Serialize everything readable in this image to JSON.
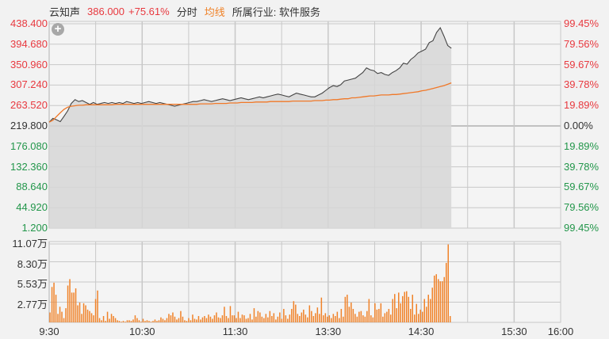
{
  "header": {
    "name": "云知声",
    "price": "386.000",
    "change_pct": "+75.61%",
    "mode_label": "分时",
    "avg_label": "均线",
    "industry": "所属行业: 软件服务"
  },
  "colors": {
    "up": "#e8393f",
    "down": "#22964a",
    "neutral": "#333333",
    "price_line": "#444444",
    "avg_line": "#f07828",
    "volume": "#f08228",
    "area_fill": "#d6d6d6",
    "grid": "#c8c8c8",
    "background": "#f2f2f2"
  },
  "controls": {
    "zoom_icon": "plus-circle-icon"
  },
  "chart_data": {
    "type": "line",
    "title": "云知声 分时",
    "price_axis": {
      "left_ticks": [
        "438.400",
        "394.680",
        "350.960",
        "307.240",
        "263.520",
        "219.800",
        "176.080",
        "132.360",
        "88.640",
        "44.920",
        "1.200"
      ],
      "right_ticks": [
        "99.45%",
        "79.56%",
        "59.67%",
        "39.78%",
        "19.89%",
        "0.00%",
        "19.89%",
        "39.78%",
        "59.67%",
        "79.56%",
        "99.45%"
      ],
      "ylim": [
        1.2,
        438.4
      ],
      "prev_close": 219.8
    },
    "volume_axis": {
      "ticks": [
        "11.07万",
        "8.30万",
        "5.53万",
        "2.77万"
      ],
      "ylim": [
        0,
        11.07
      ],
      "unit": "万"
    },
    "x_ticks": [
      {
        "label": "9:30",
        "pos": 0
      },
      {
        "label": "10:30",
        "pos": 2
      },
      {
        "label": "11:30",
        "pos": 4
      },
      {
        "label": "13:30",
        "pos": 6
      },
      {
        "label": "14:30",
        "pos": 8
      },
      {
        "label": "15:30",
        "pos": 10
      },
      {
        "label": "16:00",
        "pos": 11
      }
    ],
    "x_grid_cells": 11,
    "data_extent_cells": 8.65,
    "series": [
      {
        "name": "价格",
        "values": [
          228,
          236,
          233,
          229,
          240,
          252,
          268,
          276,
          272,
          274,
          270,
          266,
          270,
          266,
          268,
          270,
          268,
          270,
          268,
          270,
          268,
          272,
          270,
          268,
          270,
          268,
          270,
          272,
          270,
          268,
          270,
          268,
          266,
          264,
          262,
          264,
          266,
          268,
          270,
          272,
          272,
          274,
          276,
          274,
          272,
          274,
          276,
          278,
          276,
          274,
          276,
          278,
          280,
          278,
          276,
          278,
          280,
          282,
          280,
          282,
          284,
          286,
          288,
          286,
          284,
          282,
          286,
          290,
          288,
          286,
          284,
          282,
          282,
          286,
          290,
          296,
          302,
          306,
          304,
          308,
          316,
          318,
          320,
          322,
          328,
          334,
          344,
          340,
          338,
          332,
          334,
          330,
          328,
          334,
          338,
          344,
          354,
          352,
          362,
          368,
          376,
          380,
          384,
          398,
          402,
          420,
          430,
          412,
          392,
          386
        ]
      },
      {
        "name": "均价",
        "values": [
          228,
          232,
          240,
          248,
          255,
          260,
          262,
          263,
          264,
          264,
          265,
          265,
          265,
          265,
          265,
          265,
          265,
          265,
          266,
          266,
          266,
          266,
          266,
          266,
          266,
          266,
          266,
          266,
          266,
          266,
          266,
          266,
          266,
          266,
          266,
          266,
          266,
          266,
          266,
          266,
          266,
          267,
          267,
          267,
          267,
          268,
          268,
          268,
          268,
          269,
          269,
          269,
          270,
          270,
          270,
          270,
          271,
          271,
          271,
          271,
          272,
          272,
          272,
          272,
          272,
          272,
          273,
          273,
          273,
          273,
          273,
          273,
          274,
          274,
          274,
          275,
          275,
          276,
          276,
          277,
          278,
          278,
          280,
          280,
          281,
          282,
          283,
          284,
          284,
          285,
          286,
          286,
          286,
          287,
          287,
          288,
          289,
          290,
          291,
          292,
          293,
          295,
          296,
          298,
          300,
          302,
          304,
          306,
          309,
          312
        ]
      },
      {
        "name": "成交量(万)",
        "values": [
          1.4,
          5.0,
          5.6,
          3.9,
          1.2,
          2.2,
          1.5,
          0.6,
          2.0,
          5.2,
          6.1,
          4.2,
          4.2,
          4.8,
          2.4,
          2.8,
          1.2,
          2.7,
          2.4,
          1.8,
          1.6,
          1.3,
          1.0,
          3.3,
          4.5,
          0.6,
          0.3,
          0.9,
          0.2,
          1.5,
          0.5,
          1.2,
          0.9,
          0.6,
          0.3,
          0.2,
          0.1,
          0.2,
          0.1,
          0.3,
          0.3,
          0.2,
          0.4,
          1.0,
          0.6,
          0.3,
          0.1,
          0.5,
          0.2,
          0.3,
          0.2,
          0.1,
          0.2,
          0.4,
          0.2,
          0.3,
          0.7,
          0.5,
          0.3,
          0.6,
          1.2,
          1.0,
          1.4,
          0.8,
          0.4,
          0.6,
          1.6,
          0.8,
          0.3,
          0.2,
          0.6,
          0.3,
          1.1,
          0.5,
          0.4,
          0.9,
          0.4,
          0.7,
          0.9,
          0.6,
          1.1,
          0.8,
          0.5,
          1.0,
          1.4,
          0.7,
          0.6,
          1.0,
          2.2,
          0.9,
          0.6,
          2.3,
          1.0,
          1.0,
          0.6,
          1.5,
          0.6,
          1.1,
          1.0,
          0.5,
          0.6,
          1.2,
          0.4,
          2.0,
          0.8,
          1.6,
          1.4,
          0.8,
          0.6,
          1.2,
          0.7,
          1.6,
          0.9,
          1.3,
          0.4,
          0.8,
          1.4,
          0.5,
          1.9,
          1.0,
          0.5,
          1.1,
          1.9,
          3.0,
          2.5,
          1.2,
          0.9,
          1.4,
          1.8,
          1.1,
          0.7,
          2.4,
          1.6,
          0.9,
          1.3,
          2.1,
          1.2,
          3.5,
          1.0,
          1.3,
          0.8,
          1.0,
          0.6,
          1.2,
          0.9,
          1.5,
          0.6,
          1.9,
          0.8,
          3.6,
          3.9,
          2.2,
          2.8,
          1.9,
          1.2,
          0.8,
          1.5,
          1.6,
          1.0,
          0.8,
          1.6,
          3.3,
          1.0,
          0.7,
          2.7,
          1.8,
          1.9,
          2.7,
          0.8,
          1.3,
          1.5,
          1.9,
          1.1,
          3.3,
          4.0,
          2.0,
          4.2,
          2.7,
          3.7,
          4.3,
          4.4,
          3.6,
          1.9,
          3.9,
          1.1,
          2.6,
          1.2,
          1.8,
          1.5,
          3.3,
          2.2,
          3.9,
          3.3,
          4.9,
          6.6,
          6.8,
          6.1,
          5.8,
          5.8,
          6.4,
          8.4,
          11.0,
          0.9
        ]
      }
    ]
  }
}
